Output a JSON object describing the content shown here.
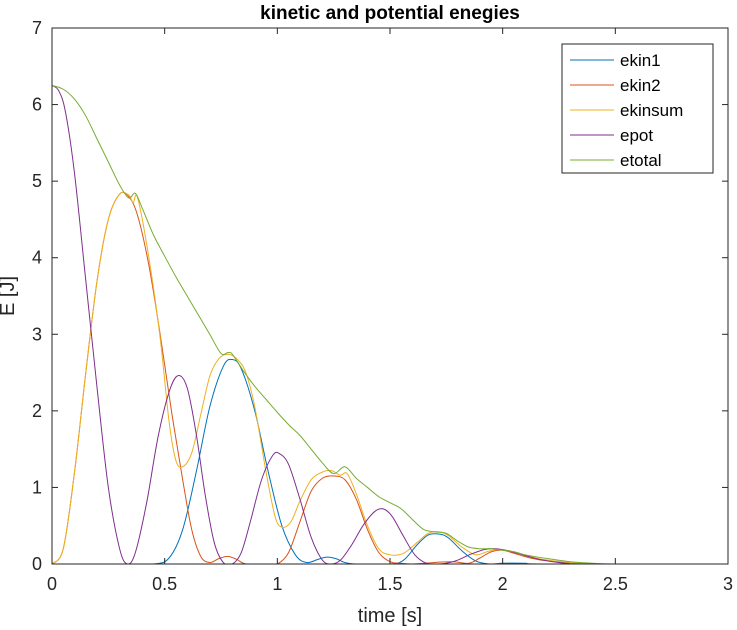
{
  "chart_data": {
    "type": "line",
    "title": "kinetic and potential enegies",
    "xlabel": "time [s]",
    "ylabel": "E [J]",
    "xlim": [
      0,
      3
    ],
    "ylim": [
      0,
      7
    ],
    "xticks": [
      "0",
      "0.5",
      "1",
      "1.5",
      "2",
      "2.5",
      "3"
    ],
    "yticks": [
      "0",
      "1",
      "2",
      "3",
      "4",
      "5",
      "6",
      "7"
    ],
    "grid": false,
    "legend_position": "top-right",
    "series": [
      {
        "name": "ekin1",
        "color": "#0072BD",
        "points": [
          [
            0,
            0
          ],
          [
            0.3,
            0
          ],
          [
            0.45,
            0
          ],
          [
            0.52,
            0.08
          ],
          [
            0.58,
            0.45
          ],
          [
            0.64,
            1.2
          ],
          [
            0.7,
            2.05
          ],
          [
            0.76,
            2.58
          ],
          [
            0.8,
            2.67
          ],
          [
            0.84,
            2.55
          ],
          [
            0.9,
            2.0
          ],
          [
            0.96,
            1.2
          ],
          [
            1.02,
            0.5
          ],
          [
            1.08,
            0.12
          ],
          [
            1.13,
            0.02
          ],
          [
            1.18,
            0.06
          ],
          [
            1.22,
            0.09
          ],
          [
            1.26,
            0.07
          ],
          [
            1.3,
            0.02
          ],
          [
            1.35,
            0
          ],
          [
            1.5,
            0
          ],
          [
            1.56,
            0.05
          ],
          [
            1.62,
            0.25
          ],
          [
            1.67,
            0.38
          ],
          [
            1.72,
            0.39
          ],
          [
            1.76,
            0.34
          ],
          [
            1.82,
            0.17
          ],
          [
            1.88,
            0.04
          ],
          [
            1.94,
            0.0
          ],
          [
            2.0,
            0.01
          ],
          [
            2.1,
            0.01
          ],
          [
            2.2,
            0
          ],
          [
            3,
            0
          ]
        ]
      },
      {
        "name": "ekin2",
        "color": "#D95319",
        "points": [
          [
            0,
            0
          ],
          [
            0.05,
            0.2
          ],
          [
            0.1,
            1.2
          ],
          [
            0.15,
            2.5
          ],
          [
            0.2,
            3.7
          ],
          [
            0.25,
            4.5
          ],
          [
            0.3,
            4.83
          ],
          [
            0.34,
            4.8
          ],
          [
            0.38,
            4.55
          ],
          [
            0.43,
            3.9
          ],
          [
            0.48,
            3.0
          ],
          [
            0.53,
            2.0
          ],
          [
            0.58,
            1.1
          ],
          [
            0.62,
            0.45
          ],
          [
            0.66,
            0.1
          ],
          [
            0.7,
            0.02
          ],
          [
            0.74,
            0.07
          ],
          [
            0.78,
            0.1
          ],
          [
            0.82,
            0.06
          ],
          [
            0.86,
            0
          ],
          [
            0.95,
            0
          ],
          [
            1.0,
            0
          ],
          [
            1.05,
            0.15
          ],
          [
            1.1,
            0.55
          ],
          [
            1.15,
            0.95
          ],
          [
            1.2,
            1.12
          ],
          [
            1.25,
            1.15
          ],
          [
            1.3,
            1.1
          ],
          [
            1.35,
            0.85
          ],
          [
            1.4,
            0.45
          ],
          [
            1.45,
            0.15
          ],
          [
            1.5,
            0.03
          ],
          [
            1.55,
            0.01
          ],
          [
            1.6,
            0.0
          ],
          [
            1.7,
            0.02
          ],
          [
            1.78,
            0.03
          ],
          [
            1.85,
            0.01
          ],
          [
            1.9,
            0.08
          ],
          [
            1.95,
            0.16
          ],
          [
            2.0,
            0.18
          ],
          [
            2.05,
            0.14
          ],
          [
            2.12,
            0.08
          ],
          [
            2.2,
            0.04
          ],
          [
            2.35,
            0.01
          ],
          [
            2.5,
            0
          ],
          [
            3,
            0
          ]
        ]
      },
      {
        "name": "ekinsum",
        "color": "#EDB120",
        "points": [
          [
            0,
            0
          ],
          [
            0.05,
            0.2
          ],
          [
            0.1,
            1.2
          ],
          [
            0.15,
            2.5
          ],
          [
            0.2,
            3.7
          ],
          [
            0.25,
            4.5
          ],
          [
            0.3,
            4.83
          ],
          [
            0.34,
            4.82
          ],
          [
            0.36,
            4.72
          ],
          [
            0.38,
            4.78
          ],
          [
            0.43,
            4.0
          ],
          [
            0.48,
            2.95
          ],
          [
            0.52,
            1.85
          ],
          [
            0.55,
            1.35
          ],
          [
            0.58,
            1.27
          ],
          [
            0.62,
            1.45
          ],
          [
            0.66,
            1.95
          ],
          [
            0.7,
            2.45
          ],
          [
            0.74,
            2.68
          ],
          [
            0.78,
            2.74
          ],
          [
            0.82,
            2.68
          ],
          [
            0.86,
            2.5
          ],
          [
            0.9,
            2.05
          ],
          [
            0.95,
            1.2
          ],
          [
            0.99,
            0.62
          ],
          [
            1.02,
            0.48
          ],
          [
            1.06,
            0.55
          ],
          [
            1.1,
            0.82
          ],
          [
            1.15,
            1.1
          ],
          [
            1.2,
            1.2
          ],
          [
            1.24,
            1.22
          ],
          [
            1.28,
            1.16
          ],
          [
            1.31,
            1.18
          ],
          [
            1.35,
            0.92
          ],
          [
            1.4,
            0.5
          ],
          [
            1.45,
            0.2
          ],
          [
            1.5,
            0.12
          ],
          [
            1.56,
            0.14
          ],
          [
            1.62,
            0.28
          ],
          [
            1.67,
            0.4
          ],
          [
            1.72,
            0.42
          ],
          [
            1.76,
            0.37
          ],
          [
            1.82,
            0.22
          ],
          [
            1.88,
            0.12
          ],
          [
            1.93,
            0.16
          ],
          [
            1.98,
            0.19
          ],
          [
            2.05,
            0.16
          ],
          [
            2.12,
            0.1
          ],
          [
            2.2,
            0.05
          ],
          [
            2.35,
            0.01
          ],
          [
            2.5,
            0
          ],
          [
            3,
            0
          ]
        ]
      },
      {
        "name": "epot",
        "color": "#7E2F8E",
        "points": [
          [
            0,
            6.25
          ],
          [
            0.03,
            6.18
          ],
          [
            0.06,
            5.9
          ],
          [
            0.1,
            5.1
          ],
          [
            0.15,
            3.7
          ],
          [
            0.2,
            2.3
          ],
          [
            0.25,
            1.0
          ],
          [
            0.3,
            0.2
          ],
          [
            0.335,
            0
          ],
          [
            0.37,
            0.15
          ],
          [
            0.42,
            0.8
          ],
          [
            0.47,
            1.65
          ],
          [
            0.52,
            2.25
          ],
          [
            0.56,
            2.46
          ],
          [
            0.6,
            2.3
          ],
          [
            0.64,
            1.7
          ],
          [
            0.68,
            0.9
          ],
          [
            0.72,
            0.28
          ],
          [
            0.76,
            0.02
          ],
          [
            0.8,
            0.0
          ],
          [
            0.84,
            0.15
          ],
          [
            0.88,
            0.55
          ],
          [
            0.93,
            1.1
          ],
          [
            0.98,
            1.42
          ],
          [
            1.01,
            1.44
          ],
          [
            1.05,
            1.3
          ],
          [
            1.1,
            0.85
          ],
          [
            1.15,
            0.35
          ],
          [
            1.2,
            0.05
          ],
          [
            1.24,
            0
          ],
          [
            1.28,
            0.05
          ],
          [
            1.33,
            0.25
          ],
          [
            1.38,
            0.5
          ],
          [
            1.43,
            0.68
          ],
          [
            1.47,
            0.72
          ],
          [
            1.51,
            0.62
          ],
          [
            1.56,
            0.36
          ],
          [
            1.61,
            0.12
          ],
          [
            1.66,
            0.01
          ],
          [
            1.7,
            0
          ],
          [
            1.75,
            0.01
          ],
          [
            1.8,
            0.05
          ],
          [
            1.86,
            0.13
          ],
          [
            1.92,
            0.19
          ],
          [
            1.97,
            0.2
          ],
          [
            2.03,
            0.17
          ],
          [
            2.1,
            0.11
          ],
          [
            2.18,
            0.05
          ],
          [
            2.28,
            0.01
          ],
          [
            2.4,
            0
          ],
          [
            3,
            0
          ]
        ]
      },
      {
        "name": "etotal",
        "color": "#77AC30",
        "points": [
          [
            0,
            6.25
          ],
          [
            0.05,
            6.2
          ],
          [
            0.1,
            6.07
          ],
          [
            0.15,
            5.85
          ],
          [
            0.2,
            5.55
          ],
          [
            0.25,
            5.25
          ],
          [
            0.3,
            4.95
          ],
          [
            0.34,
            4.78
          ],
          [
            0.37,
            4.84
          ],
          [
            0.4,
            4.65
          ],
          [
            0.45,
            4.3
          ],
          [
            0.5,
            4.02
          ],
          [
            0.55,
            3.75
          ],
          [
            0.6,
            3.5
          ],
          [
            0.65,
            3.25
          ],
          [
            0.7,
            3.0
          ],
          [
            0.75,
            2.75
          ],
          [
            0.78,
            2.76
          ],
          [
            0.8,
            2.74
          ],
          [
            0.85,
            2.52
          ],
          [
            0.9,
            2.32
          ],
          [
            0.95,
            2.15
          ],
          [
            1.0,
            1.98
          ],
          [
            1.05,
            1.82
          ],
          [
            1.1,
            1.68
          ],
          [
            1.15,
            1.5
          ],
          [
            1.2,
            1.32
          ],
          [
            1.25,
            1.18
          ],
          [
            1.3,
            1.27
          ],
          [
            1.35,
            1.12
          ],
          [
            1.4,
            1.0
          ],
          [
            1.45,
            0.88
          ],
          [
            1.5,
            0.8
          ],
          [
            1.55,
            0.72
          ],
          [
            1.6,
            0.58
          ],
          [
            1.65,
            0.45
          ],
          [
            1.7,
            0.42
          ],
          [
            1.75,
            0.4
          ],
          [
            1.8,
            0.3
          ],
          [
            1.85,
            0.22
          ],
          [
            1.9,
            0.2
          ],
          [
            1.95,
            0.2
          ],
          [
            2.0,
            0.18
          ],
          [
            2.05,
            0.16
          ],
          [
            2.1,
            0.12
          ],
          [
            2.2,
            0.07
          ],
          [
            2.3,
            0.03
          ],
          [
            2.4,
            0.01
          ],
          [
            2.5,
            0
          ],
          [
            3,
            0
          ]
        ]
      }
    ]
  }
}
